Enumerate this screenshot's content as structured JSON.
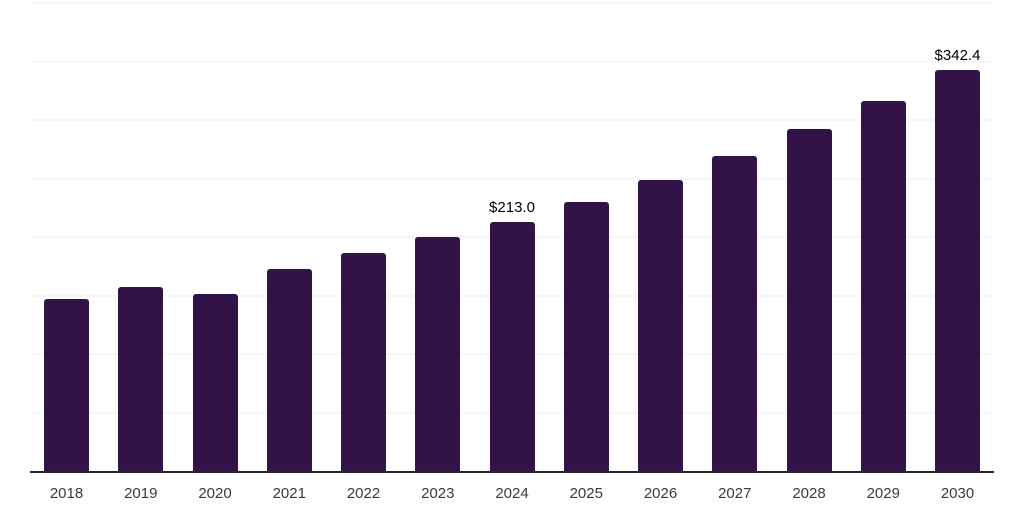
{
  "chart_data": {
    "type": "bar",
    "title": "",
    "xlabel": "",
    "ylabel": "",
    "categories": [
      "2018",
      "2019",
      "2020",
      "2021",
      "2022",
      "2023",
      "2024",
      "2025",
      "2026",
      "2027",
      "2028",
      "2029",
      "2030"
    ],
    "values": [
      147,
      157,
      151,
      173,
      186,
      200,
      213.0,
      230,
      249,
      269,
      292,
      316,
      342.4
    ],
    "value_labels": [
      "",
      "",
      "",
      "",
      "",
      "",
      "$213.0",
      "",
      "",
      "",
      "",
      "",
      "$342.4"
    ],
    "ylim": [
      0,
      400
    ],
    "grid_step": 50,
    "grid": "horizontal",
    "legend": "none",
    "bar_color": "#321349",
    "value_label_color": "#000000",
    "axis_tick_label_color": "#3a3a3a",
    "gridline_color": "#efefef",
    "axis_line_color": "#262626",
    "background_color": "#ffffff"
  }
}
